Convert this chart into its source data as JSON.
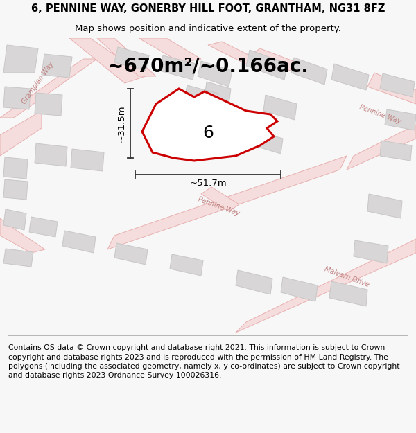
{
  "title_line1": "6, PENNINE WAY, GONERBY HILL FOOT, GRANTHAM, NG31 8FZ",
  "title_line2": "Map shows position and indicative extent of the property.",
  "area_text": "~670m²/~0.166ac.",
  "label_number": "6",
  "dim_vertical": "~31.5m",
  "dim_horizontal": "~51.7m",
  "footer_text": "Contains OS data © Crown copyright and database right 2021. This information is subject to Crown copyright and database rights 2023 and is reproduced with the permission of HM Land Registry. The polygons (including the associated geometry, namely x, y co-ordinates) are subject to Crown copyright and database rights 2023 Ordnance Survey 100026316.",
  "bg_color": "#f7f7f7",
  "map_bg": "#f0eeee",
  "road_fill": "#f5dddd",
  "road_edge": "#e8b0b0",
  "bld_fill": "#d8d6d6",
  "bld_edge": "#c8c6c6",
  "plot_fill": "#ffffff",
  "plot_edge": "#cc0000",
  "text_color": "#000000",
  "road_label_color": "#c08080",
  "dim_color": "#333333",
  "title_fontsize": 10.5,
  "subtitle_fontsize": 9.5,
  "area_fontsize": 20,
  "label_fontsize": 18,
  "dim_fontsize": 9.5,
  "footer_fontsize": 7.8
}
